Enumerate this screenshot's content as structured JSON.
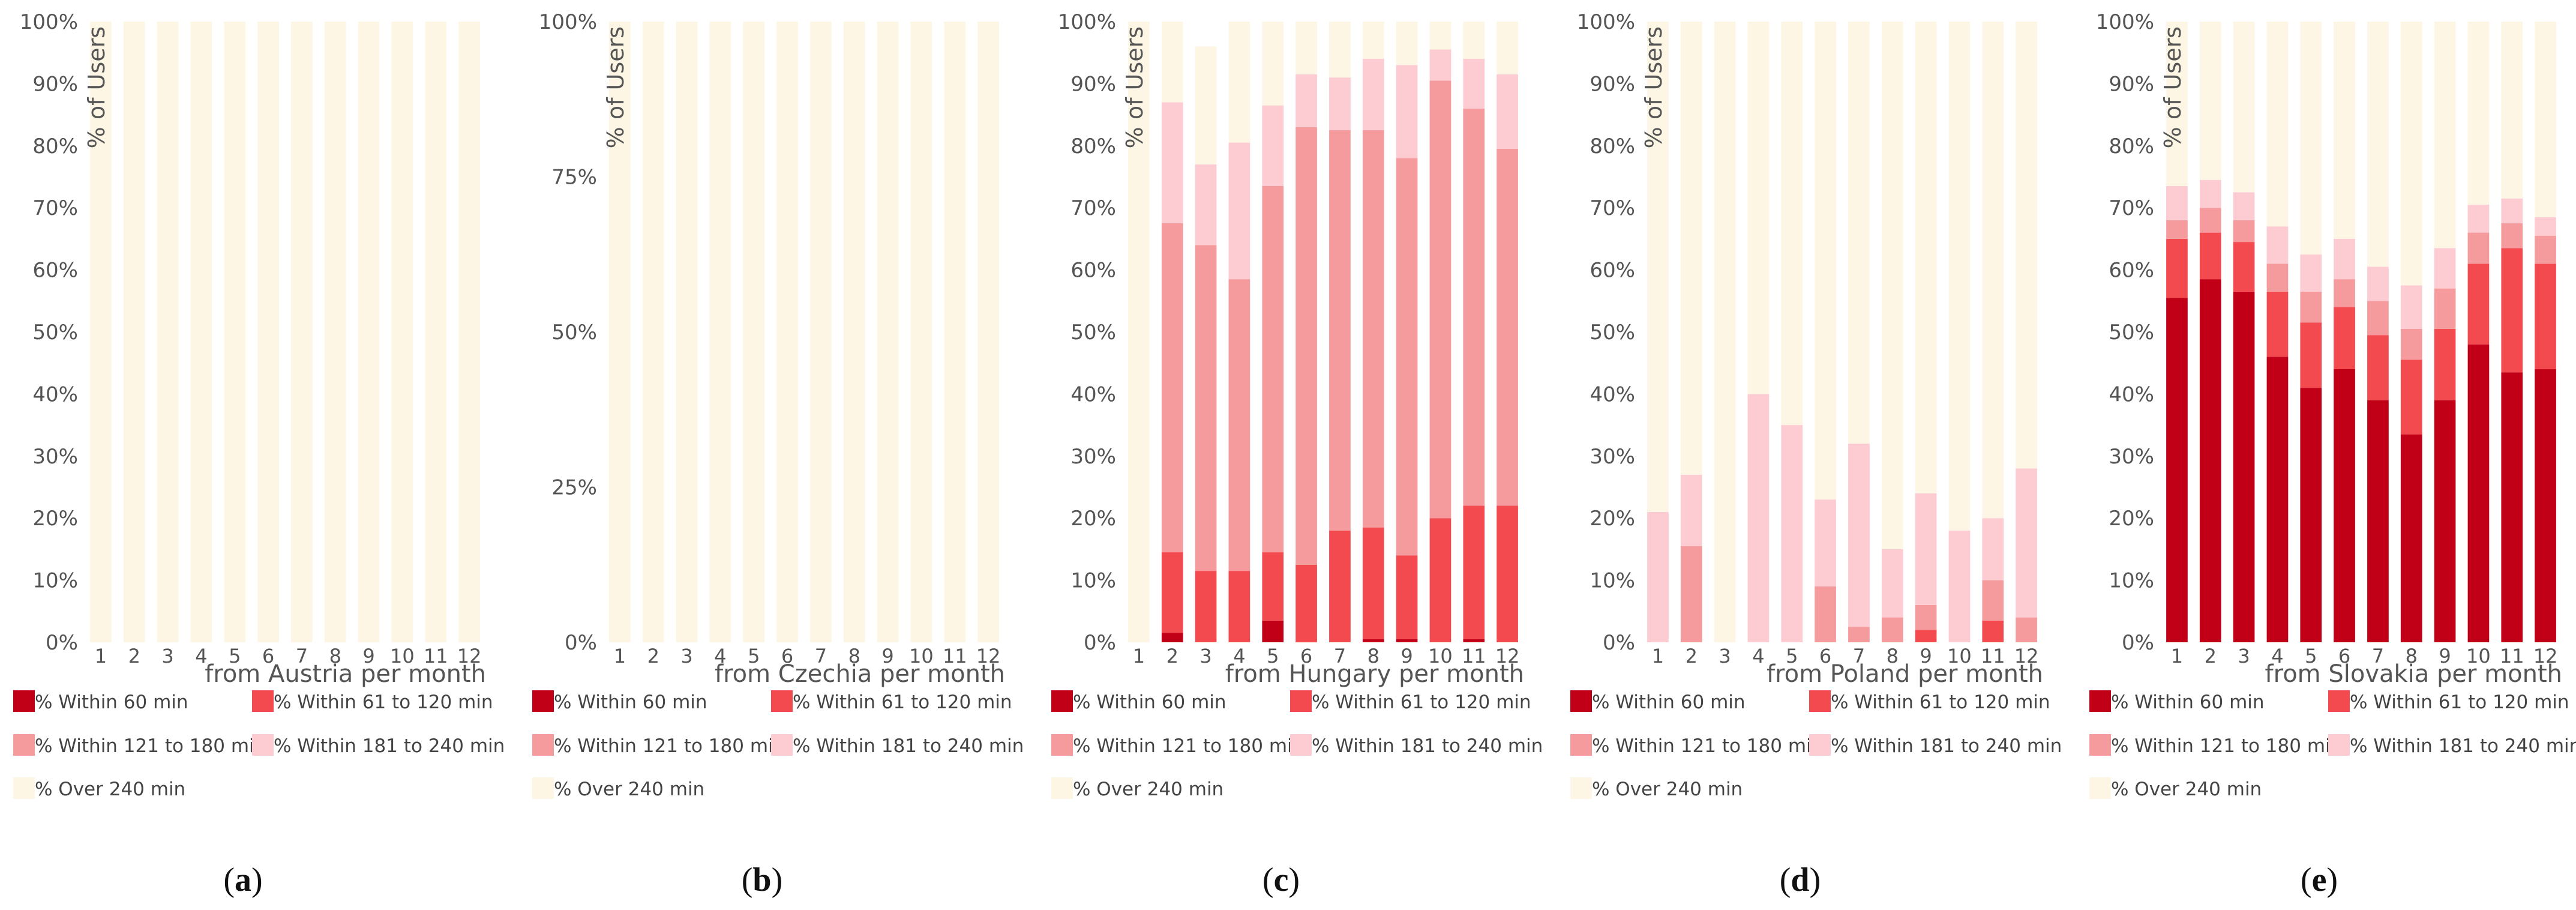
{
  "figure": {
    "panel_letters": [
      "a",
      "b",
      "c",
      "d",
      "e"
    ]
  },
  "legend_labels": [
    "% Within 60 min",
    "% Within 61 to 120 min",
    "% Within 121 to 180 min",
    "% Within 181 to 240 min",
    "% Over 240 min"
  ],
  "colors": {
    "within_60": "#c10017",
    "within_61_120": "#f34a50",
    "within_121_180": "#f59b9d",
    "within_181_240": "#fdcbd2",
    "over_240": "#fdf6e4"
  },
  "chart_data": [
    {
      "type": "bar",
      "stacked": true,
      "panel": "a",
      "xlabel": "from Austria per month",
      "ylabel": "% of Users",
      "ylim": [
        0,
        100
      ],
      "yticks": [
        "0%",
        "10%",
        "20%",
        "30%",
        "40%",
        "50%",
        "60%",
        "70%",
        "80%",
        "90%",
        "100%"
      ],
      "categories": [
        "1",
        "2",
        "3",
        "4",
        "5",
        "6",
        "7",
        "8",
        "9",
        "10",
        "11",
        "12"
      ],
      "series": [
        {
          "name": "% Within 60 min",
          "values": [
            0,
            0,
            0,
            0,
            0,
            0,
            0,
            0,
            0,
            0,
            0,
            0
          ]
        },
        {
          "name": "% Within 61 to 120 min",
          "values": [
            0,
            0,
            0,
            0,
            0,
            0,
            0,
            0,
            0,
            0,
            0,
            0
          ]
        },
        {
          "name": "% Within 121 to 180 min",
          "values": [
            0,
            0,
            0,
            0,
            0,
            0,
            0,
            0,
            0,
            0,
            0,
            0
          ]
        },
        {
          "name": "% Within 181 to 240 min",
          "values": [
            0,
            0,
            0,
            0,
            0,
            0,
            0,
            0,
            0,
            0,
            0,
            0
          ]
        },
        {
          "name": "% Over 240 min",
          "values": [
            100,
            100,
            100,
            100,
            100,
            100,
            100,
            100,
            100,
            100,
            100,
            100
          ]
        }
      ]
    },
    {
      "type": "bar",
      "stacked": true,
      "panel": "b",
      "xlabel": "from Czechia per month",
      "ylabel": "% of Users",
      "ylim": [
        0,
        100
      ],
      "yticks": [
        "0%",
        "25%",
        "50%",
        "75%",
        "100%"
      ],
      "categories": [
        "1",
        "2",
        "3",
        "4",
        "5",
        "6",
        "7",
        "8",
        "9",
        "10",
        "11",
        "12"
      ],
      "series": [
        {
          "name": "% Within 60 min",
          "values": [
            0,
            0,
            0,
            0,
            0,
            0,
            0,
            0,
            0,
            0,
            0,
            0
          ]
        },
        {
          "name": "% Within 61 to 120 min",
          "values": [
            0,
            0,
            0,
            0,
            0,
            0,
            0,
            0,
            0,
            0,
            0,
            0
          ]
        },
        {
          "name": "% Within 121 to 180 min",
          "values": [
            0,
            0,
            0,
            0,
            0,
            0,
            0,
            0,
            0,
            0,
            0,
            0
          ]
        },
        {
          "name": "% Within 181 to 240 min",
          "values": [
            0,
            0,
            0,
            0,
            0,
            0,
            0,
            0,
            0,
            0,
            0,
            0
          ]
        },
        {
          "name": "% Over 240 min",
          "values": [
            100,
            100,
            100,
            100,
            100,
            100,
            100,
            100,
            100,
            100,
            100,
            100
          ]
        }
      ]
    },
    {
      "type": "bar",
      "stacked": true,
      "panel": "c",
      "xlabel": "from Hungary per month",
      "ylabel": "% of Users",
      "ylim": [
        0,
        100
      ],
      "yticks": [
        "0%",
        "10%",
        "20%",
        "30%",
        "40%",
        "50%",
        "60%",
        "70%",
        "80%",
        "90%",
        "100%"
      ],
      "categories": [
        "1",
        "2",
        "3",
        "4",
        "5",
        "6",
        "7",
        "8",
        "9",
        "10",
        "11",
        "12"
      ],
      "series": [
        {
          "name": "% Within 60 min",
          "values": [
            0,
            1.5,
            0,
            0,
            3.5,
            0,
            0,
            0.5,
            0.5,
            0,
            0.5,
            0
          ]
        },
        {
          "name": "% Within 61 to 120 min",
          "values": [
            0,
            13,
            11.5,
            11.5,
            11,
            12.5,
            18,
            18,
            13.5,
            20,
            21.5,
            22
          ]
        },
        {
          "name": "% Within 121 to 180 min",
          "values": [
            0,
            53,
            52.5,
            47,
            59,
            70.5,
            64.5,
            64,
            64,
            70.5,
            64,
            57.5
          ]
        },
        {
          "name": "% Within 181 to 240 min",
          "values": [
            0,
            19.5,
            13,
            22,
            13,
            8.5,
            8.5,
            11.5,
            15,
            5,
            8,
            12
          ]
        },
        {
          "name": "% Over 240 min",
          "values": [
            100,
            13,
            19,
            19.5,
            13.5,
            8.5,
            9,
            6,
            7,
            4.5,
            6,
            8.5
          ]
        }
      ]
    },
    {
      "type": "bar",
      "stacked": true,
      "panel": "d",
      "xlabel": "from Poland per month",
      "ylabel": "% of Users",
      "ylim": [
        0,
        100
      ],
      "yticks": [
        "0%",
        "10%",
        "20%",
        "30%",
        "40%",
        "50%",
        "60%",
        "70%",
        "80%",
        "90%",
        "100%"
      ],
      "categories": [
        "1",
        "2",
        "3",
        "4",
        "5",
        "6",
        "7",
        "8",
        "9",
        "10",
        "11",
        "12"
      ],
      "series": [
        {
          "name": "% Within 60 min",
          "values": [
            0,
            0,
            0,
            0,
            0,
            0,
            0,
            0,
            0,
            0,
            0,
            0
          ]
        },
        {
          "name": "% Within 61 to 120 min",
          "values": [
            0,
            0,
            0,
            0,
            0,
            0,
            0,
            0,
            2,
            0,
            3.5,
            0
          ]
        },
        {
          "name": "% Within 121 to 180 min",
          "values": [
            0,
            15.5,
            0,
            0,
            0,
            9,
            2.5,
            4,
            4,
            0,
            6.5,
            4
          ]
        },
        {
          "name": "% Within 181 to 240 min",
          "values": [
            21,
            11.5,
            0,
            40,
            35,
            14,
            29.5,
            11,
            18,
            18,
            10,
            24
          ]
        },
        {
          "name": "% Over 240 min",
          "values": [
            79,
            73,
            100,
            60,
            65,
            77,
            68,
            85,
            76,
            82,
            80,
            72
          ]
        }
      ]
    },
    {
      "type": "bar",
      "stacked": true,
      "panel": "e",
      "xlabel": "from Slovakia per month",
      "ylabel": "% of Users",
      "ylim": [
        0,
        100
      ],
      "yticks": [
        "0%",
        "10%",
        "20%",
        "30%",
        "40%",
        "50%",
        "60%",
        "70%",
        "80%",
        "90%",
        "100%"
      ],
      "categories": [
        "1",
        "2",
        "3",
        "4",
        "5",
        "6",
        "7",
        "8",
        "9",
        "10",
        "11",
        "12"
      ],
      "series": [
        {
          "name": "% Within 60 min",
          "values": [
            55.5,
            58.5,
            56.5,
            46,
            41,
            44,
            39,
            33.5,
            39,
            48,
            43.5,
            44
          ]
        },
        {
          "name": "% Within 61 to 120 min",
          "values": [
            9.5,
            7.5,
            8,
            10.5,
            10.5,
            10,
            10.5,
            12,
            11.5,
            13,
            20,
            17
          ]
        },
        {
          "name": "% Within 121 to 180 min",
          "values": [
            3,
            4,
            3.5,
            4.5,
            5,
            4.5,
            5.5,
            5,
            6.5,
            5,
            4,
            4.5
          ]
        },
        {
          "name": "% Within 181 to 240 min",
          "values": [
            5.5,
            4.5,
            4.5,
            6,
            6,
            6.5,
            5.5,
            7,
            6.5,
            4.5,
            4,
            3
          ]
        },
        {
          "name": "% Over 240 min",
          "values": [
            26.5,
            25.5,
            27.5,
            33,
            37.5,
            35,
            39.5,
            42.5,
            36.5,
            29.5,
            28.5,
            31.5
          ]
        }
      ]
    }
  ]
}
